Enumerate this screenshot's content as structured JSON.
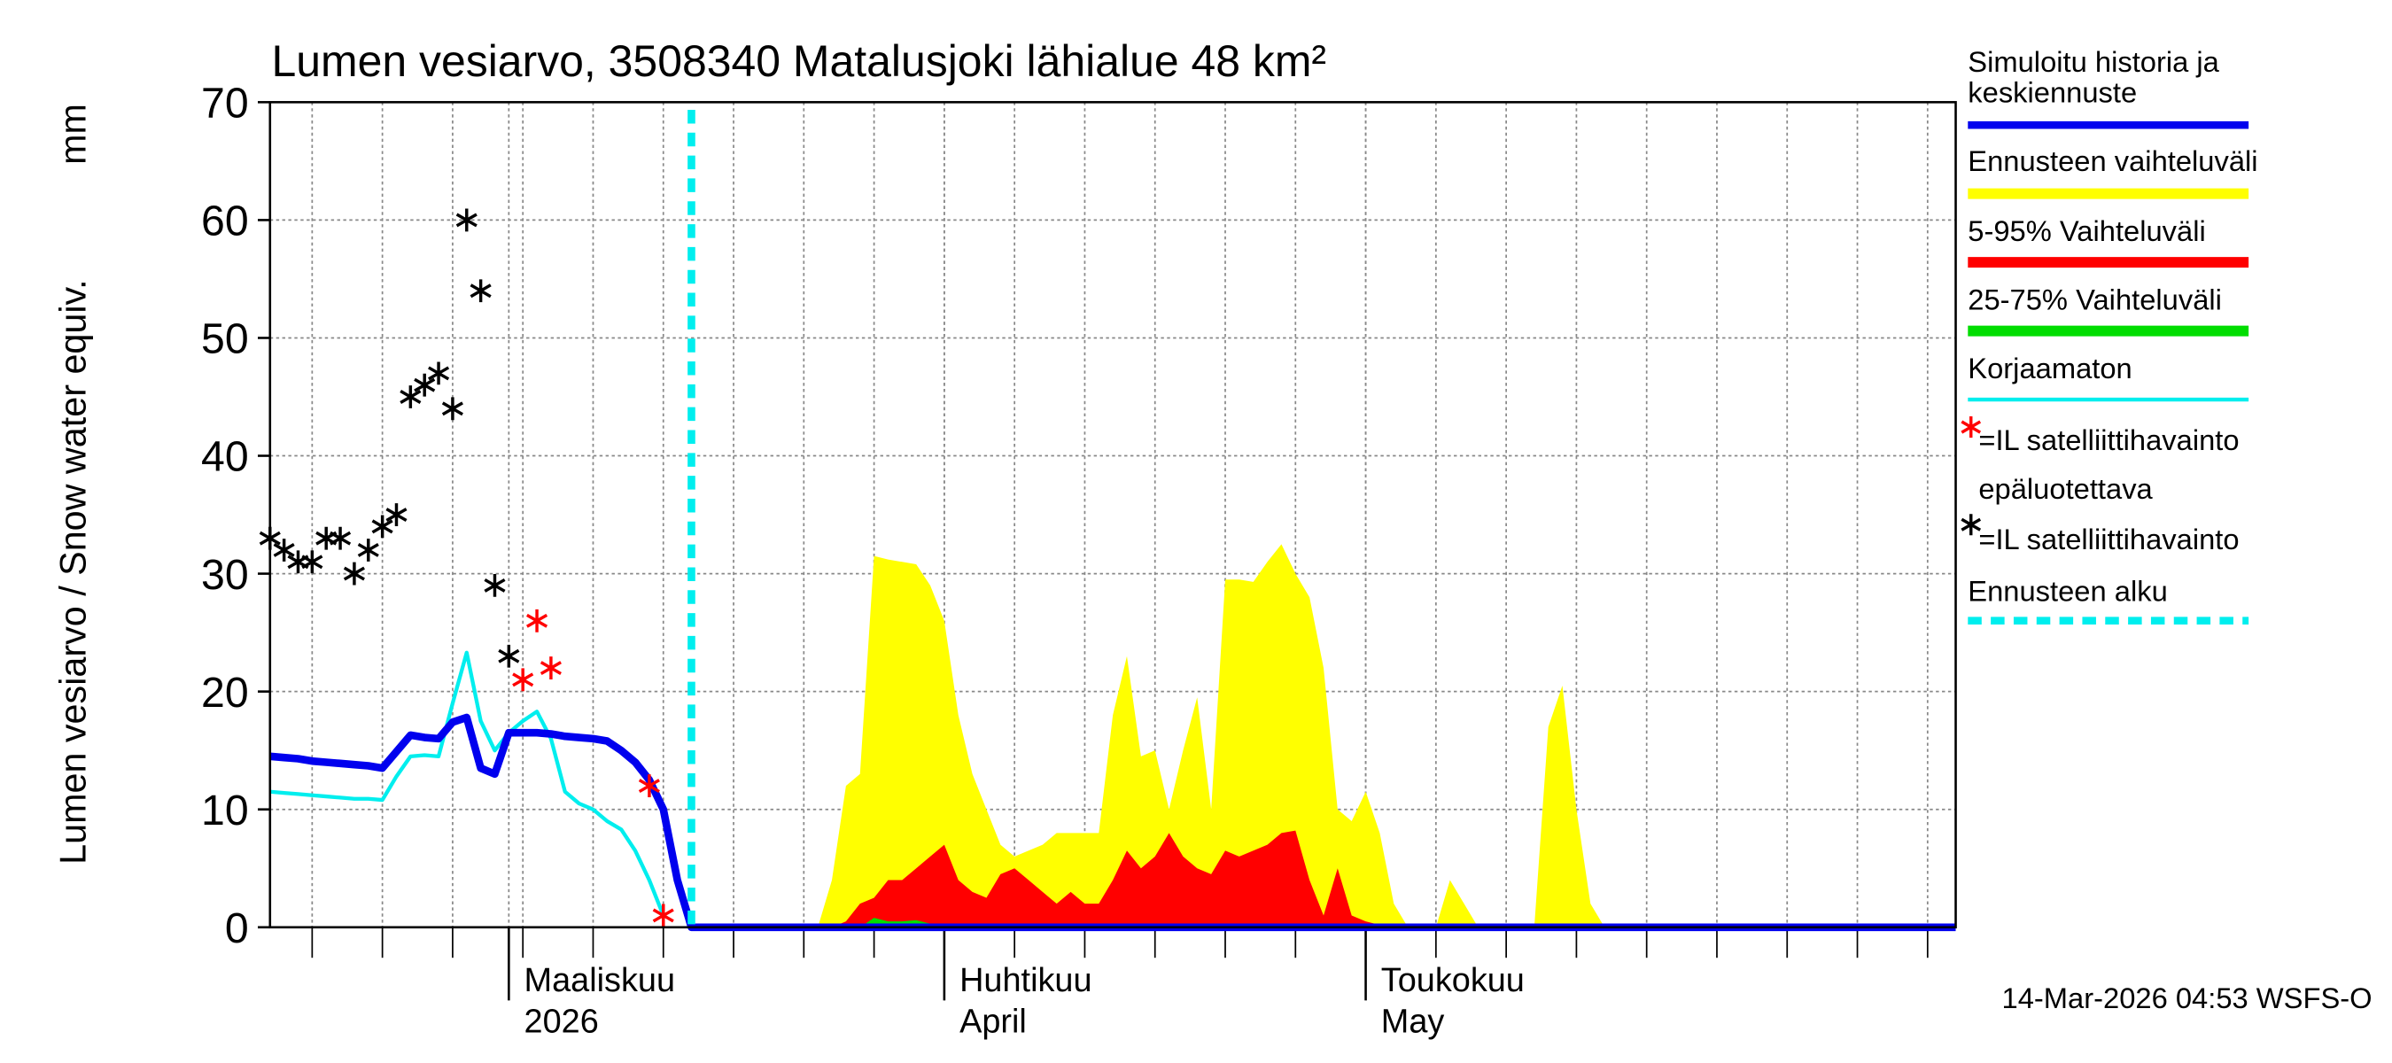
{
  "chart_data": {
    "type": "line",
    "title": "Lumen vesiarvo, 3508340 Matalusjoki lähialue 48 km²",
    "y_label": "Lumen vesiarvo / Snow water equiv.",
    "y_unit": "mm",
    "footer": "14-Mar-2026 04:53 WSFS-O",
    "ylim": [
      0,
      70
    ],
    "yticks": [
      0,
      10,
      20,
      30,
      40,
      50,
      60,
      70
    ],
    "grid": true,
    "categories": [
      null,
      null,
      null,
      null,
      null,
      null,
      null,
      null,
      null,
      null,
      null,
      null,
      null,
      null,
      null,
      null,
      null,
      "Maaliskuu",
      null,
      null,
      null,
      null,
      null,
      null,
      null,
      null,
      null,
      null,
      null,
      null,
      null,
      null,
      null,
      null,
      null,
      null,
      null,
      null,
      null,
      null,
      null,
      null,
      null,
      null,
      null,
      null,
      null,
      null,
      "Huhtikuu",
      null,
      null,
      null,
      null,
      null,
      null,
      null,
      null,
      null,
      null,
      null,
      null,
      null,
      null,
      null,
      null,
      null,
      null,
      null,
      null,
      null,
      null,
      null,
      null,
      null,
      null,
      null,
      null,
      null,
      "Toukokuu",
      null,
      null,
      null,
      null,
      null,
      null,
      null,
      null,
      null,
      null,
      null,
      null,
      null,
      null,
      null,
      null,
      null,
      null,
      null,
      null,
      null,
      null,
      null,
      null,
      null,
      null,
      null,
      null,
      null,
      null,
      null,
      null,
      null,
      null,
      null,
      null,
      null,
      null,
      null,
      null,
      null,
      null
    ],
    "categories_line2": [
      null,
      null,
      null,
      null,
      null,
      null,
      null,
      null,
      null,
      null,
      null,
      null,
      null,
      null,
      null,
      null,
      null,
      "2026",
      null,
      null,
      null,
      null,
      null,
      null,
      null,
      null,
      null,
      null,
      null,
      null,
      null,
      null,
      null,
      null,
      null,
      null,
      null,
      null,
      null,
      null,
      null,
      null,
      null,
      null,
      null,
      null,
      null,
      null,
      "April",
      null,
      null,
      null,
      null,
      null,
      null,
      null,
      null,
      null,
      null,
      null,
      null,
      null,
      null,
      null,
      null,
      null,
      null,
      null,
      null,
      null,
      null,
      null,
      null,
      null,
      null,
      null,
      null,
      null,
      "May",
      null,
      null,
      null,
      null,
      null,
      null,
      null,
      null,
      null,
      null,
      null,
      null,
      null,
      null,
      null,
      null,
      null,
      null,
      null,
      null,
      null,
      null,
      null,
      null,
      null,
      null,
      null,
      null,
      null,
      null,
      null,
      null,
      null,
      null,
      null,
      null,
      null,
      null,
      null,
      null,
      null,
      null
    ],
    "forecast_start": 30,
    "forecast_start_label": "Ennusteen alku",
    "forecast_start_color": "#00eeee",
    "series": [
      {
        "name": [
          "Simuloitu historia ja",
          "keskiennuste"
        ],
        "kind": "line",
        "color": "#0000ee",
        "line_width": 5,
        "values": [
          14.5,
          14.4,
          14.3,
          14.1,
          14.0,
          13.9,
          13.8,
          13.7,
          13.5,
          14.9,
          16.3,
          16.1,
          16.0,
          17.4,
          17.8,
          13.5,
          13.0,
          16.5,
          16.5,
          16.5,
          16.4,
          16.2,
          16.1,
          16.0,
          15.8,
          15.0,
          14.0,
          12.5,
          10,
          4,
          0,
          0,
          0,
          0,
          0,
          0,
          0,
          0,
          0,
          0,
          0,
          0,
          0,
          0,
          0,
          0,
          0,
          0,
          0,
          0,
          0,
          0,
          0,
          0,
          0,
          0,
          0,
          0,
          0,
          0,
          0,
          0,
          0,
          0,
          0,
          0,
          0,
          0,
          0,
          0,
          0,
          0,
          0,
          0,
          0,
          0,
          0,
          0,
          0,
          0,
          0,
          0,
          0,
          0,
          0,
          0,
          0,
          0,
          0,
          0,
          0,
          0,
          0,
          0,
          0,
          0,
          0,
          0,
          0,
          0,
          0,
          0,
          0,
          0,
          0,
          0,
          0,
          0,
          0,
          0,
          0,
          0,
          0,
          0,
          0,
          0,
          0,
          0,
          0,
          0,
          0
        ]
      },
      {
        "name": [
          "Ennusteen vaihteluväli"
        ],
        "kind": "area",
        "color": "#ffff00",
        "values": [
          null,
          null,
          null,
          null,
          null,
          null,
          null,
          null,
          null,
          null,
          null,
          null,
          null,
          null,
          null,
          null,
          null,
          null,
          null,
          null,
          null,
          null,
          null,
          null,
          null,
          null,
          null,
          null,
          null,
          null,
          0,
          0,
          0,
          0,
          0,
          0,
          0,
          0,
          0,
          0,
          4,
          12,
          13,
          31.5,
          31.2,
          31.0,
          30.8,
          29,
          26,
          18,
          13,
          10,
          7,
          6,
          6.5,
          7,
          8,
          8,
          8,
          8,
          18,
          23,
          14.5,
          15,
          10,
          15,
          19.5,
          10,
          29.5,
          29.5,
          29.3,
          31,
          32.5,
          30,
          28,
          22,
          10,
          9,
          11.5,
          8,
          2,
          0,
          0,
          0,
          4,
          2,
          0,
          0,
          0,
          0,
          0,
          17,
          20.5,
          10,
          2,
          0,
          0,
          0,
          0,
          0,
          0,
          0,
          0,
          0,
          0,
          0,
          0,
          0,
          0,
          0,
          0,
          0,
          0,
          0,
          0,
          0,
          0,
          0,
          0,
          0,
          0
        ]
      },
      {
        "name": [
          "5-95% Vaihteluväli"
        ],
        "kind": "area",
        "color": "#ff0000",
        "values": [
          null,
          null,
          null,
          null,
          null,
          null,
          null,
          null,
          null,
          null,
          null,
          null,
          null,
          null,
          null,
          null,
          null,
          null,
          null,
          null,
          null,
          null,
          null,
          null,
          null,
          null,
          null,
          null,
          null,
          null,
          0,
          0,
          0,
          0,
          0,
          0,
          0,
          0,
          0,
          0,
          0,
          0.5,
          2,
          2.5,
          4,
          4,
          5,
          6,
          7,
          4,
          3,
          2.5,
          4.5,
          5,
          4,
          3,
          2,
          3,
          2,
          2,
          4,
          6.5,
          5,
          6,
          8,
          6,
          5,
          4.5,
          6.5,
          6,
          6.5,
          7,
          8,
          8.2,
          4,
          1,
          5,
          1,
          0.5,
          0.2,
          0,
          0,
          0,
          0,
          0,
          0,
          0,
          0,
          0,
          0,
          0,
          0,
          0,
          0,
          0,
          0,
          0,
          0,
          0,
          0,
          0,
          0,
          0,
          0,
          0,
          0,
          0,
          0,
          0,
          0,
          0,
          0,
          0,
          0,
          0,
          0,
          0,
          0,
          0,
          0,
          0
        ]
      },
      {
        "name": [
          "25-75% Vaihteluväli"
        ],
        "kind": "area",
        "color": "#00dd00",
        "values": [
          null,
          null,
          null,
          null,
          null,
          null,
          null,
          null,
          null,
          null,
          null,
          null,
          null,
          null,
          null,
          null,
          null,
          null,
          null,
          null,
          null,
          null,
          null,
          null,
          null,
          null,
          null,
          null,
          null,
          null,
          0,
          0,
          0,
          0,
          0,
          0,
          0,
          0,
          0,
          0,
          0,
          0,
          0,
          0.8,
          0.5,
          0.5,
          0.6,
          0.3,
          0.3,
          0,
          0,
          0,
          0,
          0,
          0,
          0,
          0,
          0,
          0,
          0,
          0,
          0,
          0,
          0,
          0,
          0,
          0,
          0,
          0,
          0,
          0,
          0,
          0,
          0,
          0,
          0,
          0,
          0,
          0,
          0,
          0,
          0,
          0,
          0,
          0,
          0,
          0,
          0,
          0,
          0,
          0,
          0,
          0,
          0,
          0,
          0,
          0,
          0,
          0,
          0,
          0,
          0,
          0,
          0,
          0,
          0,
          0,
          0,
          0,
          0,
          0,
          0,
          0,
          0,
          0,
          0,
          0,
          0,
          0,
          0,
          0
        ]
      },
      {
        "name": [
          "Korjaamaton"
        ],
        "kind": "line",
        "color": "#00eeee",
        "line_width": 2.5,
        "values": [
          11.5,
          11.4,
          11.3,
          11.2,
          11.1,
          11.0,
          10.9,
          10.9,
          10.8,
          12.8,
          14.5,
          14.6,
          14.5,
          19,
          23.3,
          17.5,
          15,
          16.5,
          17.5,
          18.3,
          16,
          11.5,
          10.5,
          10,
          9,
          8.3,
          6.5,
          4,
          1,
          null,
          null,
          null,
          null,
          null,
          null,
          null,
          null,
          null,
          null,
          null,
          null,
          null,
          null,
          null,
          null,
          null,
          null,
          null,
          null,
          null,
          null,
          null,
          null,
          null,
          null,
          null,
          null,
          null,
          null,
          null,
          null,
          null,
          null,
          null,
          null,
          null,
          null,
          null,
          null,
          null,
          null,
          null,
          null,
          null,
          null,
          null,
          null,
          null,
          null,
          null,
          null,
          null,
          null,
          null,
          null,
          null,
          null,
          null,
          null,
          null,
          null,
          null,
          null,
          null,
          null,
          null,
          null,
          null,
          null,
          null,
          null,
          null,
          null,
          null,
          null,
          null,
          null,
          null,
          null,
          null,
          null,
          null,
          null,
          null,
          null,
          null,
          null,
          null,
          null,
          null,
          null
        ]
      },
      {
        "name": [
          "=IL satelliittihavainto",
          "epäluotettava"
        ],
        "kind": "scatter",
        "color": "#ff0000",
        "x": [
          18,
          19,
          20,
          27,
          28
        ],
        "values": [
          21,
          26,
          22,
          12,
          1
        ]
      },
      {
        "name": [
          "=IL satelliittihavainto"
        ],
        "kind": "scatter",
        "color": "#000000",
        "x": [
          0,
          1,
          2,
          3,
          4,
          5,
          6,
          7,
          8,
          9,
          10,
          11,
          12,
          13,
          14,
          15,
          16,
          17
        ],
        "values": [
          33,
          32,
          31,
          31,
          33,
          33,
          30,
          32,
          34,
          35,
          45,
          46,
          47,
          44,
          60,
          54,
          29,
          23
        ]
      }
    ]
  }
}
